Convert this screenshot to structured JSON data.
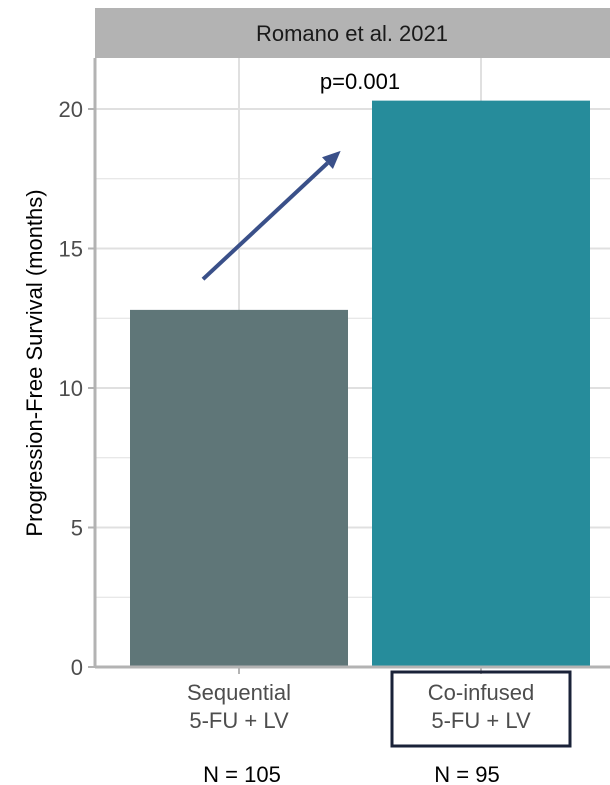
{
  "chart_data": {
    "type": "bar",
    "title": "Romano et al. 2021",
    "ylabel": "Progression-Free Survival (months)",
    "xlabel": "",
    "ylim": [
      0,
      21.5
    ],
    "yticks": [
      0,
      5,
      10,
      15,
      20
    ],
    "grid": true,
    "categories": [
      {
        "line1": "Sequential",
        "line2": "5-FU + LV",
        "n_label": "N = 105",
        "boxed": false
      },
      {
        "line1": "Co-infused",
        "line2": "5-FU + LV",
        "n_label": "N = 95",
        "boxed": true
      }
    ],
    "values": [
      12.8,
      20.3
    ],
    "annotation": "p=0.001",
    "arrow": {
      "from": [
        1,
        13.9
      ],
      "to": [
        1.42,
        18.5
      ]
    }
  },
  "colors": {
    "bars": [
      "#5f7678",
      "#268c9b"
    ],
    "strip_bg": "#b3b3b3",
    "grid": "#e0e0e0",
    "arrow": "#3a5089",
    "box": "#1a2238"
  }
}
